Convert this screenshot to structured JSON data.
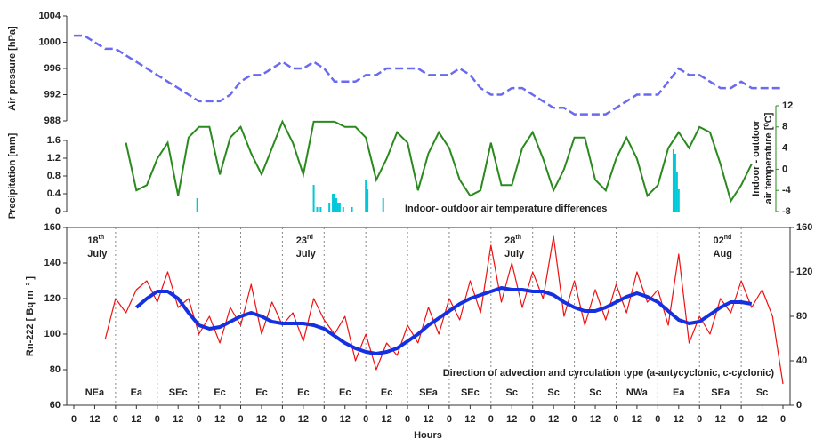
{
  "chart_data": [
    {
      "type": "line",
      "ylabel": "Air pressure [hPa]",
      "color": "#6a6af0",
      "dashed": true,
      "xlim": [
        0,
        408
      ],
      "x": [
        0,
        6,
        12,
        18,
        24,
        30,
        36,
        42,
        48,
        54,
        60,
        66,
        72,
        78,
        84,
        90,
        96,
        102,
        108,
        114,
        120,
        126,
        132,
        138,
        144,
        150,
        156,
        162,
        168,
        174,
        180,
        186,
        192,
        198,
        204,
        210,
        216,
        222,
        228,
        234,
        240,
        246,
        252,
        258,
        264,
        270,
        276,
        282,
        288,
        294,
        300,
        306,
        312,
        318,
        324,
        330,
        336,
        342,
        348,
        354,
        360,
        366,
        372,
        378,
        384,
        390,
        396,
        402,
        408
      ],
      "values": [
        1001,
        1001,
        1000,
        999,
        999,
        998,
        997,
        996,
        995,
        994,
        993,
        992,
        991,
        991,
        991,
        992,
        994,
        995,
        995,
        996,
        997,
        996,
        996,
        997,
        996,
        994,
        994,
        994,
        995,
        995,
        996,
        996,
        996,
        996,
        995,
        995,
        995,
        996,
        995,
        993,
        992,
        992,
        993,
        993,
        992,
        991,
        990,
        990,
        989,
        989,
        989,
        989,
        990,
        991,
        992,
        992,
        992,
        994,
        996,
        995,
        995,
        994,
        993,
        993,
        994,
        993,
        993,
        993,
        993
      ],
      "ylim": [
        988,
        1004
      ],
      "yticks": [
        988,
        992,
        996,
        1000,
        1004
      ]
    },
    {
      "type": "bar",
      "ylabel": "Precipitation [mm]",
      "color": "#00c8d8",
      "xlim": [
        0,
        408
      ],
      "x": [
        71,
        138,
        140,
        142,
        147,
        149,
        150,
        151,
        152,
        153,
        155,
        160,
        168,
        169,
        178,
        345,
        346,
        347,
        348
      ],
      "values": [
        0.3,
        0.6,
        0.1,
        0.1,
        0.2,
        0.4,
        0.4,
        0.3,
        0.2,
        0.2,
        0.1,
        0.1,
        0.7,
        0.5,
        0.3,
        1.4,
        1.3,
        0.9,
        0.5
      ],
      "ylim": [
        0,
        1.6
      ],
      "yticks": [
        0,
        0.4,
        0.8,
        1.2,
        1.6
      ],
      "y2label": [
        "Indoor - outdoor",
        "air temperature [⁰C]"
      ],
      "y2lim": [
        -8,
        12
      ],
      "y2ticks": [
        -8,
        -4,
        0,
        4,
        8,
        12
      ],
      "series": [
        {
          "name": "Indoor- outdoor air temperature differences",
          "color": "#2a8a1e",
          "axis": "y2",
          "x": [
            0,
            6,
            12,
            18,
            24,
            30,
            36,
            42,
            48,
            54,
            60,
            66,
            72,
            78,
            84,
            90,
            96,
            102,
            108,
            114,
            120,
            126,
            132,
            138,
            144,
            150,
            156,
            162,
            168,
            174,
            180,
            186,
            192,
            198,
            204,
            210,
            216,
            222,
            228,
            234,
            240,
            246,
            252,
            258,
            264,
            270,
            276,
            282,
            288,
            294,
            300,
            306,
            312,
            318,
            324,
            330,
            336,
            342,
            348,
            354,
            360,
            366,
            372,
            378,
            384,
            390,
            396,
            402,
            408
          ],
          "values": [
            null,
            null,
            null,
            null,
            null,
            5,
            -4,
            -3,
            2,
            5,
            -5,
            6,
            8,
            8,
            -1,
            6,
            8,
            3,
            -1,
            4,
            9,
            5,
            -1,
            9,
            9,
            9,
            8,
            8,
            6,
            -2,
            2,
            7,
            5,
            -4,
            3,
            7,
            4,
            -2,
            -5,
            -4,
            5,
            -3,
            -3,
            4,
            7,
            2,
            -4,
            0,
            6,
            6,
            -2,
            -4,
            2,
            6,
            2,
            -5,
            -3,
            4,
            7,
            4,
            8,
            7,
            1,
            -6,
            -3,
            1,
            null,
            null,
            null
          ]
        }
      ]
    },
    {
      "type": "line",
      "ylabel": "Rn-222 [ Bq m⁻³ ]",
      "xlabel": "Hours",
      "annotation": "Direction of advection and cyrculation type (a-antycyclonic, c-cyclonic)",
      "directions": [
        "NEa",
        "Ea",
        "SEc",
        "Ec",
        "Ec",
        "Ec",
        "Ec",
        "Ec",
        "SEa",
        "SEc",
        "Sc",
        "Sc",
        "Sc",
        "NWa",
        "Ea",
        "SEa",
        "Sc"
      ],
      "dates": [
        {
          "day": "18",
          "suffix": "th",
          "month": "July"
        },
        {
          "day": "23",
          "suffix": "rd",
          "month": "July"
        },
        {
          "day": "28",
          "suffix": "th",
          "month": "July"
        },
        {
          "day": "02",
          "suffix": "nd",
          "month": "Aug"
        }
      ],
      "xlim": [
        0,
        408
      ],
      "xticks": [
        0,
        12,
        {
          "value": 24,
          "label": "0"
        },
        {
          "value": 36,
          "label": "12"
        },
        {
          "value": 48,
          "label": "0"
        },
        {
          "value": 60,
          "label": "12"
        },
        {
          "value": 72,
          "label": "0"
        },
        {
          "value": 84,
          "label": "12"
        },
        {
          "value": 96,
          "label": "0"
        },
        {
          "value": 108,
          "label": "12"
        },
        {
          "value": 120,
          "label": "0"
        },
        {
          "value": 132,
          "label": "12"
        },
        {
          "value": 144,
          "label": "0"
        },
        {
          "value": 156,
          "label": "12"
        },
        {
          "value": 168,
          "label": "0"
        },
        {
          "value": 180,
          "label": "12"
        },
        {
          "value": 192,
          "label": "0"
        },
        {
          "value": 204,
          "label": "12"
        },
        {
          "value": 216,
          "label": "0"
        },
        {
          "value": 228,
          "label": "12"
        },
        {
          "value": 240,
          "label": "0"
        },
        {
          "value": 252,
          "label": "12"
        },
        {
          "value": 264,
          "label": "0"
        },
        {
          "value": 276,
          "label": "12"
        },
        {
          "value": 288,
          "label": "0"
        },
        {
          "value": 300,
          "label": "12"
        },
        {
          "value": 312,
          "label": "0"
        },
        {
          "value": 324,
          "label": "12"
        },
        {
          "value": 336,
          "label": "0"
        },
        {
          "value": 348,
          "label": "12"
        },
        {
          "value": 360,
          "label": "0"
        },
        {
          "value": 372,
          "label": "12"
        },
        {
          "value": 384,
          "label": "0"
        },
        {
          "value": 396,
          "label": "12"
        },
        {
          "value": 408,
          "label": "0"
        }
      ],
      "x": [
        0,
        6,
        12,
        18,
        24,
        30,
        36,
        42,
        48,
        54,
        60,
        66,
        72,
        78,
        84,
        90,
        96,
        102,
        108,
        114,
        120,
        126,
        132,
        138,
        144,
        150,
        156,
        162,
        168,
        174,
        180,
        186,
        192,
        198,
        204,
        210,
        216,
        222,
        228,
        234,
        240,
        246,
        252,
        258,
        264,
        270,
        276,
        282,
        288,
        294,
        300,
        306,
        312,
        318,
        324,
        330,
        336,
        342,
        348,
        354,
        360,
        366,
        372,
        378,
        384,
        390,
        396,
        402,
        408
      ],
      "ylim": [
        60,
        160
      ],
      "yticks": [
        60,
        80,
        100,
        120,
        140,
        160
      ],
      "y2lim": [
        0,
        160
      ],
      "y2ticks": [
        0,
        40,
        80,
        120,
        160
      ],
      "series": [
        {
          "color": "#ee1111",
          "width": 1.2,
          "values": [
            null,
            null,
            null,
            97,
            120,
            112,
            125,
            130,
            118,
            135,
            115,
            120,
            100,
            110,
            95,
            115,
            105,
            128,
            100,
            118,
            105,
            112,
            96,
            120,
            108,
            100,
            110,
            85,
            100,
            80,
            95,
            88,
            105,
            95,
            115,
            100,
            120,
            108,
            130,
            112,
            150,
            118,
            140,
            115,
            135,
            120,
            155,
            110,
            130,
            105,
            125,
            108,
            128,
            112,
            135,
            118,
            125,
            105,
            145,
            95,
            110,
            100,
            120,
            112,
            130,
            115,
            125,
            110,
            72
          ]
        },
        {
          "color": "#1530e0",
          "width": 4,
          "values": [
            null,
            null,
            null,
            null,
            null,
            null,
            115,
            120,
            124,
            124,
            120,
            112,
            105,
            103,
            104,
            107,
            110,
            112,
            110,
            107,
            106,
            106,
            106,
            105,
            103,
            99,
            95,
            92,
            90,
            89,
            90,
            92,
            96,
            100,
            105,
            109,
            113,
            117,
            120,
            122,
            124,
            126,
            125,
            125,
            124,
            124,
            122,
            118,
            115,
            113,
            113,
            115,
            118,
            121,
            123,
            121,
            118,
            113,
            108,
            106,
            107,
            111,
            115,
            118,
            118,
            117,
            null,
            null,
            null
          ]
        }
      ]
    }
  ]
}
